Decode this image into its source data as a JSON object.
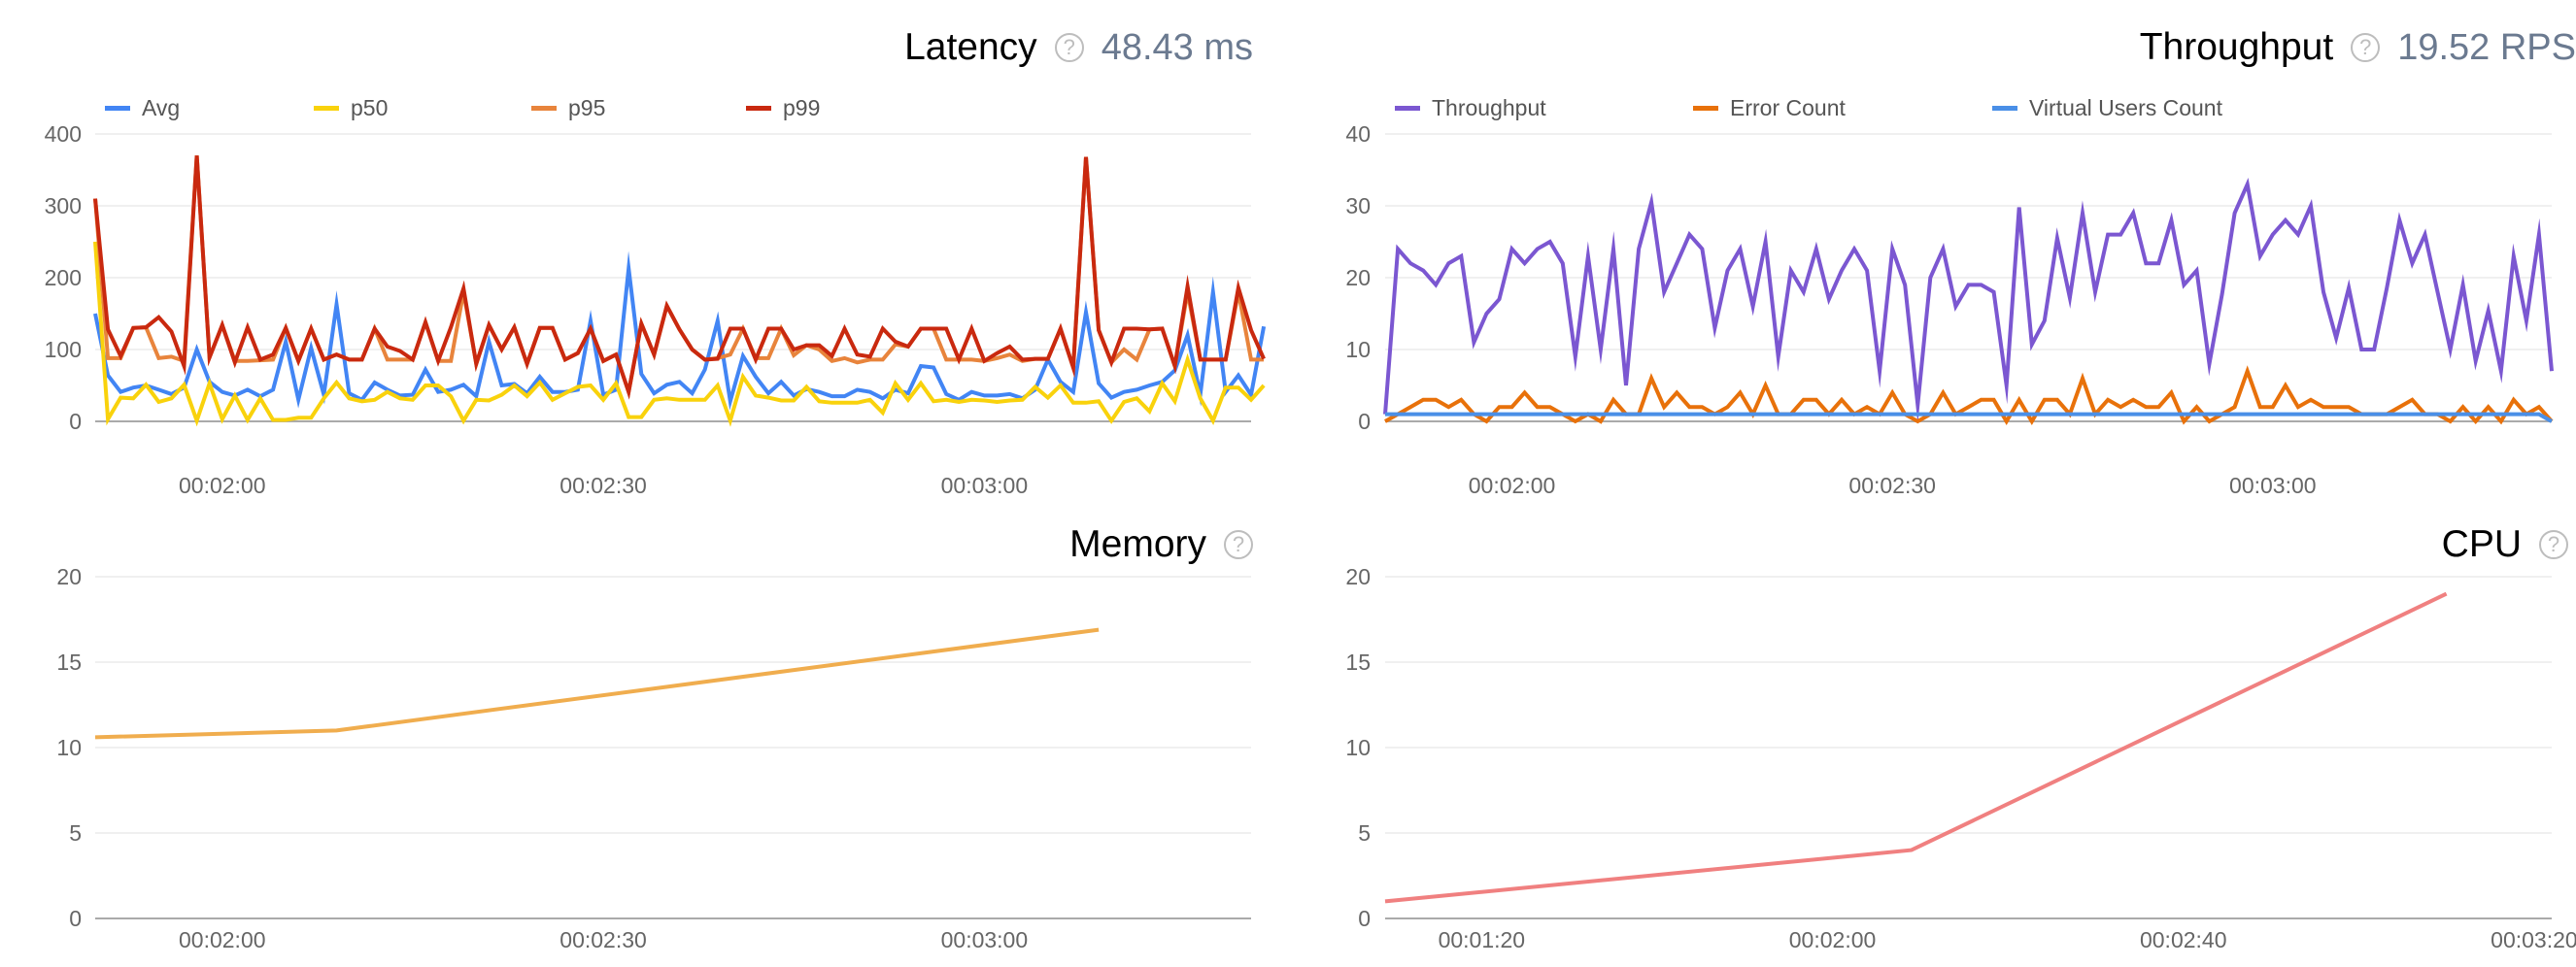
{
  "panels": {
    "latency": {
      "title": "Latency",
      "value": "48.43 ms",
      "help_icon": "question-circle-icon"
    },
    "throughput": {
      "title": "Throughput",
      "value": "19.52 RPS",
      "help_icon": "question-circle-icon"
    },
    "memory": {
      "title": "Memory",
      "help_icon": "question-circle-icon"
    },
    "cpu": {
      "title": "CPU",
      "help_icon": "question-circle-icon"
    }
  },
  "chart_data": [
    {
      "id": "latency",
      "type": "line",
      "title": "Latency",
      "ylim": [
        0,
        400
      ],
      "yticks": [
        0,
        100,
        200,
        300,
        400
      ],
      "xlim": [
        "00:01:50",
        "00:03:21"
      ],
      "xticks": [
        "00:02:00",
        "00:02:30",
        "00:03:00"
      ],
      "grid": true,
      "legend": "top-left",
      "x": [
        "00:01:50",
        "00:01:51",
        "00:01:52",
        "00:01:53",
        "00:01:54",
        "00:01:55",
        "00:01:56",
        "00:01:57",
        "00:01:58",
        "00:01:59",
        "00:02:00",
        "00:02:01",
        "00:02:02",
        "00:02:03",
        "00:02:04",
        "00:02:05",
        "00:02:06",
        "00:02:07",
        "00:02:08",
        "00:02:09",
        "00:02:10",
        "00:02:11",
        "00:02:12",
        "00:02:13",
        "00:02:14",
        "00:02:15",
        "00:02:16",
        "00:02:17",
        "00:02:18",
        "00:02:19",
        "00:02:20",
        "00:02:21",
        "00:02:22",
        "00:02:23",
        "00:02:24",
        "00:02:25",
        "00:02:26",
        "00:02:27",
        "00:02:28",
        "00:02:29",
        "00:02:30",
        "00:02:31",
        "00:02:32",
        "00:02:33",
        "00:02:34",
        "00:02:35",
        "00:02:36",
        "00:02:37",
        "00:02:38",
        "00:02:39",
        "00:02:40",
        "00:02:41",
        "00:02:42",
        "00:02:43",
        "00:02:44",
        "00:02:45",
        "00:02:46",
        "00:02:47",
        "00:02:48",
        "00:02:49",
        "00:02:50",
        "00:02:51",
        "00:02:52",
        "00:02:53",
        "00:02:54",
        "00:02:55",
        "00:02:56",
        "00:02:57",
        "00:02:58",
        "00:02:59",
        "00:03:00",
        "00:03:01",
        "00:03:02",
        "00:03:03",
        "00:03:04",
        "00:03:05",
        "00:03:06",
        "00:03:07",
        "00:03:08",
        "00:03:09",
        "00:03:10",
        "00:03:11",
        "00:03:12",
        "00:03:13",
        "00:03:14",
        "00:03:15",
        "00:03:16",
        "00:03:17",
        "00:03:18",
        "00:03:19",
        "00:03:20",
        "00:03:21",
        "00:03:22"
      ],
      "series": [
        {
          "name": "Avg",
          "color": "#4285f4",
          "values": [
            150,
            64,
            41,
            47,
            50,
            44,
            38,
            47,
            100,
            55,
            41,
            36,
            44,
            35,
            44,
            111,
            30,
            102,
            37,
            163,
            39,
            30,
            54,
            44,
            36,
            37,
            72,
            41,
            44,
            51,
            35,
            111,
            50,
            52,
            39,
            62,
            41,
            41,
            44,
            140,
            37,
            44,
            213,
            66,
            39,
            51,
            55,
            39,
            72,
            140,
            28,
            91,
            62,
            39,
            55,
            36,
            45,
            41,
            35,
            35,
            44,
            41,
            32,
            44,
            39,
            77,
            75,
            38,
            30,
            41,
            36,
            36,
            38,
            32,
            44,
            86,
            55,
            41,
            152,
            53,
            33,
            41,
            44,
            50,
            55,
            71,
            120,
            37,
            180,
            41,
            64,
            37,
            132
          ]
        },
        {
          "name": "p50",
          "color": "#f9d20c",
          "values": [
            250,
            3,
            33,
            32,
            51,
            27,
            32,
            51,
            1,
            53,
            3,
            36,
            2,
            32,
            2,
            2,
            5,
            5,
            32,
            54,
            32,
            28,
            30,
            41,
            32,
            30,
            50,
            50,
            35,
            1,
            30,
            29,
            37,
            50,
            35,
            54,
            30,
            39,
            48,
            50,
            30,
            53,
            6,
            6,
            30,
            32,
            30,
            30,
            30,
            50,
            1,
            62,
            36,
            33,
            29,
            29,
            48,
            28,
            26,
            26,
            26,
            30,
            12,
            53,
            30,
            53,
            28,
            30,
            27,
            30,
            29,
            27,
            29,
            30,
            48,
            33,
            50,
            26,
            26,
            28,
            1,
            27,
            32,
            14,
            53,
            28,
            86,
            32,
            1,
            47,
            47,
            30,
            50
          ]
        },
        {
          "name": "p95",
          "color": "#e8843c",
          "values": [
            310,
            88,
            88,
            130,
            131,
            88,
            90,
            84,
            370,
            89,
            134,
            84,
            84,
            85,
            86,
            130,
            84,
            129,
            86,
            93,
            86,
            86,
            129,
            86,
            86,
            86,
            138,
            84,
            84,
            180,
            80,
            134,
            100,
            131,
            80,
            130,
            130,
            86,
            95,
            129,
            84,
            93,
            41,
            136,
            93,
            161,
            128,
            100,
            86,
            88,
            93,
            129,
            88,
            88,
            129,
            92,
            106,
            100,
            84,
            88,
            82,
            86,
            86,
            107,
            104,
            129,
            129,
            86,
            86,
            86,
            84,
            88,
            93,
            84,
            87,
            87,
            129,
            75,
            368,
            127,
            82,
            100,
            86,
            128,
            129,
            77,
            180,
            86,
            86,
            86,
            180,
            86,
            86
          ]
        },
        {
          "name": "p99",
          "color": "#c9290f",
          "values": [
            310,
            128,
            91,
            130,
            131,
            145,
            125,
            77,
            370,
            89,
            134,
            82,
            131,
            86,
            93,
            130,
            84,
            129,
            86,
            93,
            86,
            86,
            129,
            104,
            98,
            86,
            138,
            84,
            131,
            185,
            80,
            134,
            100,
            131,
            80,
            130,
            130,
            86,
            95,
            129,
            84,
            93,
            41,
            136,
            93,
            161,
            128,
            100,
            86,
            87,
            129,
            129,
            86,
            129,
            129,
            100,
            106,
            106,
            91,
            129,
            93,
            90,
            129,
            111,
            104,
            129,
            129,
            129,
            86,
            129,
            84,
            95,
            104,
            86,
            87,
            87,
            129,
            75,
            368,
            127,
            82,
            129,
            129,
            128,
            129,
            77,
            188,
            86,
            86,
            86,
            186,
            127,
            87
          ]
        }
      ]
    },
    {
      "id": "throughput",
      "type": "line",
      "title": "Throughput",
      "ylim": [
        0,
        40
      ],
      "yticks": [
        0,
        10,
        20,
        30,
        40
      ],
      "xlim": [
        "00:01:50",
        "00:03:22"
      ],
      "xticks": [
        "00:02:00",
        "00:02:30",
        "00:03:00"
      ],
      "grid": true,
      "legend": "top-left",
      "x": [
        "00:01:50",
        "00:01:51",
        "00:01:52",
        "00:01:53",
        "00:01:54",
        "00:01:55",
        "00:01:56",
        "00:01:57",
        "00:01:58",
        "00:01:59",
        "00:02:00",
        "00:02:01",
        "00:02:02",
        "00:02:03",
        "00:02:04",
        "00:02:05",
        "00:02:06",
        "00:02:07",
        "00:02:08",
        "00:02:09",
        "00:02:10",
        "00:02:11",
        "00:02:12",
        "00:02:13",
        "00:02:14",
        "00:02:15",
        "00:02:16",
        "00:02:17",
        "00:02:18",
        "00:02:19",
        "00:02:20",
        "00:02:21",
        "00:02:22",
        "00:02:23",
        "00:02:24",
        "00:02:25",
        "00:02:26",
        "00:02:27",
        "00:02:28",
        "00:02:29",
        "00:02:30",
        "00:02:31",
        "00:02:32",
        "00:02:33",
        "00:02:34",
        "00:02:35",
        "00:02:36",
        "00:02:37",
        "00:02:38",
        "00:02:39",
        "00:02:40",
        "00:02:41",
        "00:02:42",
        "00:02:43",
        "00:02:44",
        "00:02:45",
        "00:02:46",
        "00:02:47",
        "00:02:48",
        "00:02:49",
        "00:02:50",
        "00:02:51",
        "00:02:52",
        "00:02:53",
        "00:02:54",
        "00:02:55",
        "00:02:56",
        "00:02:57",
        "00:02:58",
        "00:02:59",
        "00:03:00",
        "00:03:01",
        "00:03:02",
        "00:03:03",
        "00:03:04",
        "00:03:05",
        "00:03:06",
        "00:03:07",
        "00:03:08",
        "00:03:09",
        "00:03:10",
        "00:03:11",
        "00:03:12",
        "00:03:13",
        "00:03:14",
        "00:03:15",
        "00:03:16",
        "00:03:17",
        "00:03:18",
        "00:03:19",
        "00:03:20",
        "00:03:21",
        "00:03:22"
      ],
      "series": [
        {
          "name": "Throughput",
          "color": "#7b57d1",
          "values": [
            1,
            24,
            22,
            21,
            19,
            22,
            23,
            11,
            15,
            17,
            24,
            22,
            24,
            25,
            22,
            9,
            23,
            10,
            24,
            5,
            24,
            30.5,
            18,
            22,
            26,
            24,
            13,
            21,
            24,
            16,
            25,
            9,
            21,
            18,
            24,
            17,
            21,
            24,
            21,
            7,
            24,
            19,
            2.3,
            20,
            24,
            16,
            19,
            19,
            18,
            5,
            29.8,
            10.7,
            14,
            25.5,
            17.2,
            29,
            18,
            26,
            26,
            29,
            22,
            22,
            28,
            19,
            21,
            8,
            17.7,
            29,
            33,
            23,
            26,
            28,
            26,
            30,
            18,
            11.6,
            18.6,
            10,
            10,
            18.6,
            28,
            22,
            26,
            18,
            10,
            19,
            8.4,
            15.4,
            7,
            23,
            14,
            26,
            7
          ]
        },
        {
          "name": "Error Count",
          "color": "#e8710a",
          "values": [
            0,
            1,
            2,
            3,
            3,
            2,
            3,
            1,
            0,
            2,
            2,
            4,
            2,
            2,
            1,
            0,
            1,
            0,
            3,
            1,
            1,
            6,
            2,
            4,
            2,
            2,
            1,
            2,
            4,
            1,
            5,
            1,
            1,
            3,
            3,
            1,
            3,
            1,
            2,
            1,
            4,
            1,
            0,
            1,
            4,
            1,
            2,
            3,
            3,
            0,
            3,
            0,
            3,
            3,
            1,
            6,
            1,
            3,
            2,
            3,
            2,
            2,
            4,
            0,
            2,
            0,
            1,
            2,
            7,
            2,
            2,
            5,
            2,
            3,
            2,
            2,
            2,
            1,
            1,
            1,
            2,
            3,
            1,
            1,
            0,
            2,
            0,
            2,
            0,
            3,
            1,
            2,
            0
          ]
        },
        {
          "name": "Virtual Users Count",
          "color": "#4a8fe7",
          "values": [
            1,
            1,
            1,
            1,
            1,
            1,
            1,
            1,
            1,
            1,
            1,
            1,
            1,
            1,
            1,
            1,
            1,
            1,
            1,
            1,
            1,
            1,
            1,
            1,
            1,
            1,
            1,
            1,
            1,
            1,
            1,
            1,
            1,
            1,
            1,
            1,
            1,
            1,
            1,
            1,
            1,
            1,
            1,
            1,
            1,
            1,
            1,
            1,
            1,
            1,
            1,
            1,
            1,
            1,
            1,
            1,
            1,
            1,
            1,
            1,
            1,
            1,
            1,
            1,
            1,
            1,
            1,
            1,
            1,
            1,
            1,
            1,
            1,
            1,
            1,
            1,
            1,
            1,
            1,
            1,
            1,
            1,
            1,
            1,
            1,
            1,
            1,
            1,
            1,
            1,
            1,
            1,
            0
          ]
        }
      ]
    },
    {
      "id": "memory",
      "type": "line",
      "title": "Memory",
      "ylim": [
        0,
        20
      ],
      "yticks": [
        0,
        5,
        10,
        15,
        20
      ],
      "xlim": [
        "00:01:50",
        "00:03:21"
      ],
      "xticks": [
        "00:02:00",
        "00:02:30",
        "00:03:00"
      ],
      "grid": true,
      "x": [
        "00:01:50",
        "00:02:09",
        "00:03:09"
      ],
      "series": [
        {
          "color": "#f0ad4e",
          "values": [
            10.6,
            11.0,
            16.9
          ]
        }
      ]
    },
    {
      "id": "cpu",
      "type": "line",
      "title": "CPU",
      "ylim": [
        0,
        20
      ],
      "yticks": [
        0,
        5,
        10,
        15,
        20
      ],
      "xlim": [
        "00:01:09",
        "00:03:22"
      ],
      "xticks": [
        "00:01:20",
        "00:02:00",
        "00:02:40",
        "00:03:20"
      ],
      "grid": true,
      "x": [
        "00:01:09",
        "00:02:09",
        "00:03:10"
      ],
      "series": [
        {
          "color": "#f08080",
          "values": [
            1.0,
            4.0,
            19.0
          ]
        }
      ]
    }
  ]
}
